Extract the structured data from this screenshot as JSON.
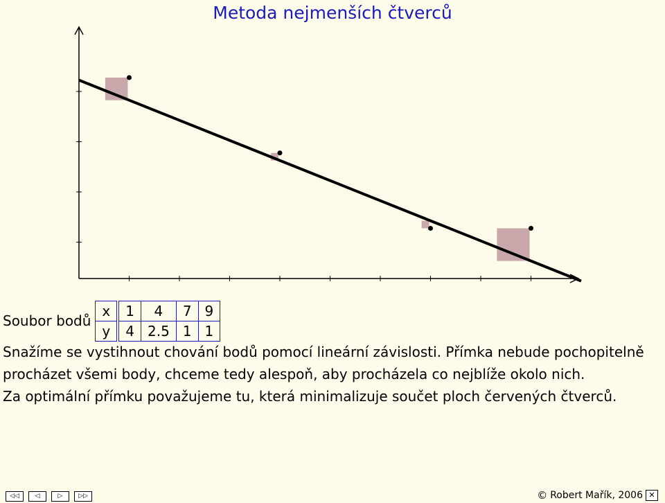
{
  "title": "Metoda nejmenších čtverců",
  "data_table": {
    "label": "Soubor bodů",
    "rows": [
      {
        "name": "x",
        "values": [
          "1",
          "4",
          "7",
          "9"
        ]
      },
      {
        "name": "y",
        "values": [
          "4",
          "2.5",
          "1",
          "1"
        ]
      }
    ]
  },
  "paragraph": [
    "Snažíme se vystihnout chování bodů pomocí lineární závislosti. Přímka nebude pochopitelně",
    "procházet všemi body, chceme tedy alespoň, aby procházela co nejblíže okolo nich.",
    "Za optimální přímku považujeme tu, která minimalizuje součet ploch červených čtverců."
  ],
  "chart_data": {
    "type": "scatter",
    "points": [
      {
        "x": 1,
        "y": 4
      },
      {
        "x": 4,
        "y": 2.5
      },
      {
        "x": 7,
        "y": 1
      },
      {
        "x": 9,
        "y": 1
      }
    ],
    "line": {
      "intercept": 3.95,
      "slope": -0.4
    },
    "xlim": [
      0,
      10
    ],
    "ylim": [
      0,
      4
    ],
    "x_ticks": [
      1,
      2,
      3,
      4,
      5,
      6,
      7,
      8,
      9
    ],
    "y_ticks": [
      1,
      2,
      3,
      4
    ],
    "square_color": "#c9a8ab",
    "point_color": "#000000",
    "line_color": "#000000"
  },
  "nav": {
    "first": "◁◁",
    "prev": "◁",
    "next": "▷",
    "last": "▷▷"
  },
  "footer": {
    "copyright_symbol": "©",
    "text": "Robert Mařík, 2006",
    "close": "✕"
  }
}
